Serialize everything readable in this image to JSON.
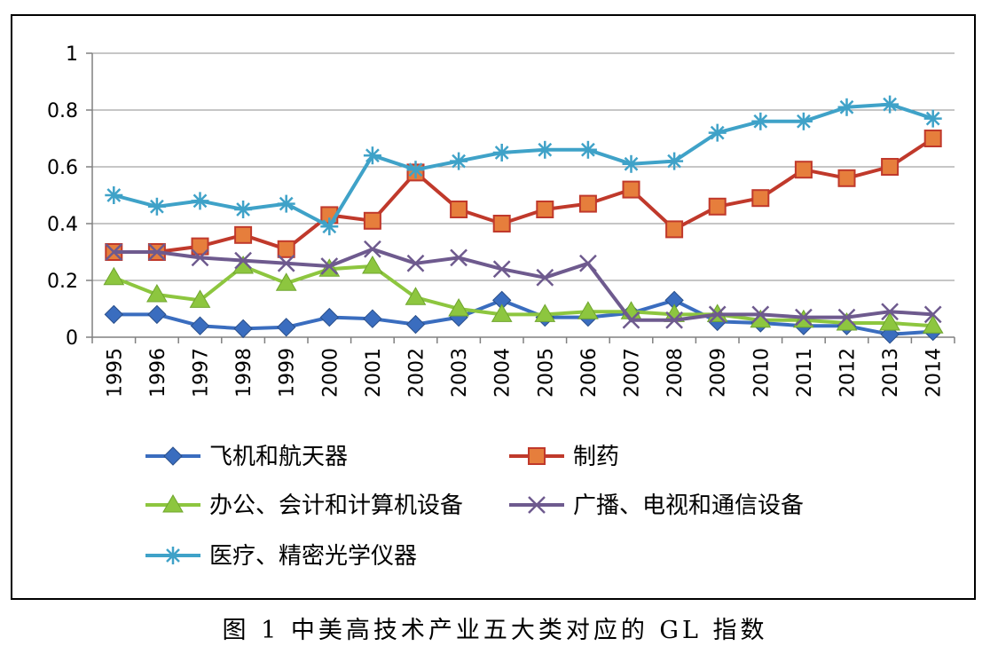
{
  "caption": "图 1  中美高技术产业五大类对应的 GL 指数",
  "chart_data": {
    "type": "line",
    "title": "",
    "xlabel": "",
    "ylabel": "",
    "ylim": [
      0,
      1
    ],
    "yticks": [
      "0",
      "0.2",
      "0.4",
      "0.6",
      "0.8",
      "1"
    ],
    "grid": "horizontal",
    "legend_position": "bottom",
    "categories": [
      "1995",
      "1996",
      "1997",
      "1998",
      "1999",
      "2000",
      "2001",
      "2002",
      "2003",
      "2004",
      "2005",
      "2006",
      "2007",
      "2008",
      "2009",
      "2010",
      "2011",
      "2012",
      "2013",
      "2014"
    ],
    "series": [
      {
        "name": "飞机和航天器",
        "color": "#3A6DBF",
        "marker": "diamond",
        "values": [
          0.08,
          0.08,
          0.04,
          0.03,
          0.035,
          0.07,
          0.065,
          0.045,
          0.07,
          0.13,
          0.07,
          0.07,
          0.085,
          0.13,
          0.055,
          0.05,
          0.04,
          0.04,
          0.01,
          0.02
        ]
      },
      {
        "name": "制药",
        "color": "#C0392B",
        "marker": "square",
        "values": [
          0.3,
          0.3,
          0.32,
          0.36,
          0.31,
          0.43,
          0.41,
          0.58,
          0.45,
          0.4,
          0.45,
          0.47,
          0.52,
          0.38,
          0.46,
          0.49,
          0.59,
          0.56,
          0.6,
          0.7
        ]
      },
      {
        "name": "办公、会计和计算机设备",
        "color": "#8DC63F",
        "marker": "triangle",
        "values": [
          0.21,
          0.15,
          0.13,
          0.25,
          0.19,
          0.24,
          0.25,
          0.14,
          0.1,
          0.08,
          0.08,
          0.09,
          0.09,
          0.08,
          0.08,
          0.06,
          0.06,
          0.05,
          0.05,
          0.04
        ]
      },
      {
        "name": "广播、电视和通信设备",
        "color": "#6E5A8E",
        "marker": "x",
        "values": [
          0.3,
          0.3,
          0.28,
          0.27,
          0.26,
          0.25,
          0.31,
          0.26,
          0.28,
          0.24,
          0.21,
          0.26,
          0.06,
          0.06,
          0.08,
          0.08,
          0.07,
          0.07,
          0.09,
          0.08
        ]
      },
      {
        "name": "医疗、精密光学仪器",
        "color": "#3FA2C8",
        "marker": "star",
        "values": [
          0.5,
          0.46,
          0.48,
          0.45,
          0.47,
          0.39,
          0.64,
          0.59,
          0.62,
          0.65,
          0.66,
          0.66,
          0.61,
          0.62,
          0.72,
          0.76,
          0.76,
          0.81,
          0.82,
          0.77
        ]
      }
    ]
  }
}
